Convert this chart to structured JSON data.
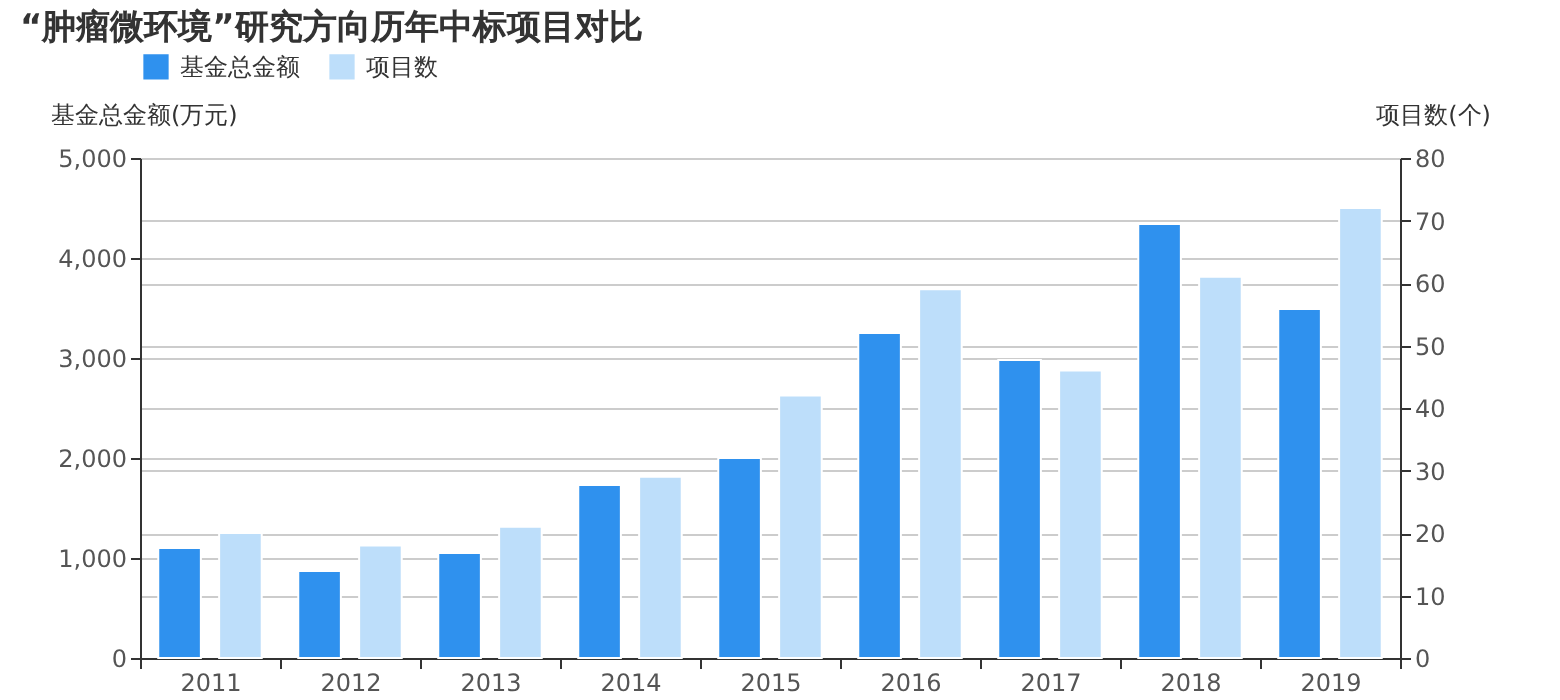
{
  "chart_data": {
    "type": "bar",
    "title": "“肿瘤微环境”研究方向历年中标项目对比",
    "ylabel": "基金总金额(万元)",
    "y2label": "项目数(个)",
    "categories": [
      "2011",
      "2012",
      "2013",
      "2014",
      "2015",
      "2016",
      "2017",
      "2018",
      "2019"
    ],
    "series": [
      {
        "name": "基金总金额",
        "color": "#2f91ee",
        "values": [
          1100,
          870,
          1050,
          1730,
          2000,
          3250,
          2980,
          4340,
          3490
        ]
      },
      {
        "name": "项目数",
        "color": "#bddefa",
        "axis": "y2",
        "values": [
          20,
          18,
          21,
          29,
          42,
          59,
          46,
          61,
          72
        ]
      }
    ],
    "ylim": [
      0,
      5000
    ],
    "yticks": [
      0,
      {
        "value": 1000,
        "label": "1,000"
      },
      {
        "value": 2000,
        "label": "2,000"
      },
      {
        "value": 3000,
        "label": "3,000"
      },
      {
        "value": 4000,
        "label": "4,000"
      },
      {
        "value": 5000,
        "label": "5,000"
      }
    ],
    "y2lim": [
      0,
      80
    ],
    "y2ticks": [
      0,
      10,
      20,
      30,
      40,
      50,
      60,
      70,
      80
    ],
    "grid": true,
    "legend": "top"
  }
}
